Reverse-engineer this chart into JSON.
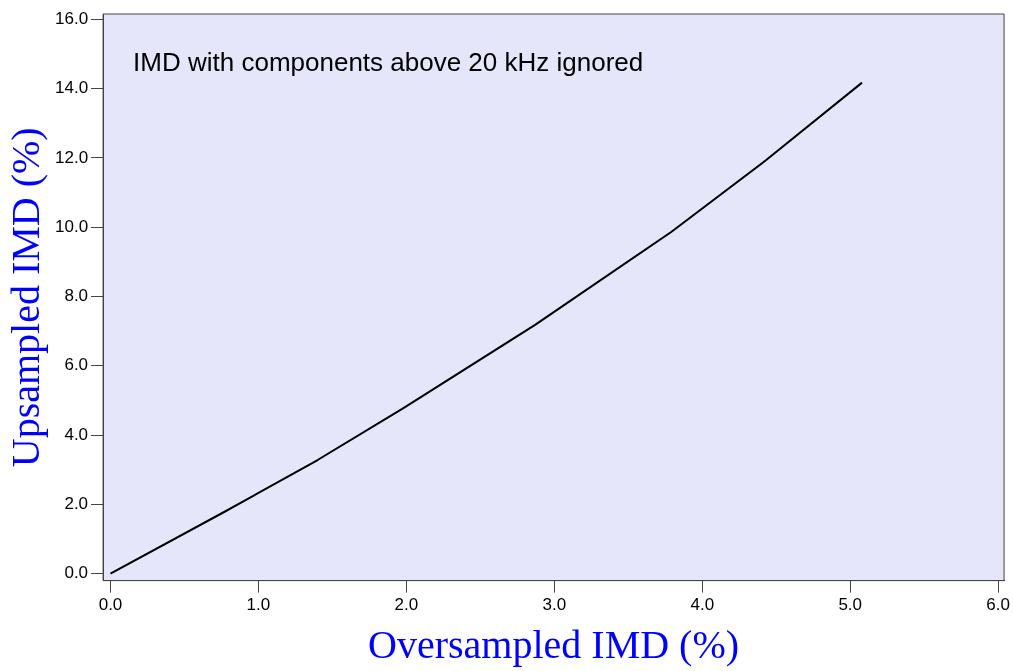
{
  "chart_data": {
    "type": "line",
    "xlabel": "Oversampled IMD (%)",
    "ylabel": "Upsampled IMD (%)",
    "annotations": [
      "IMD with components above 20 kHz ignored"
    ],
    "x": [
      0,
      0.79,
      1.4,
      1.98,
      2.87,
      3.79,
      4.43,
      5.08
    ],
    "series": [
      {
        "color": "#000000",
        "values": [
          0,
          1.83,
          3.28,
          4.78,
          7.18,
          9.86,
          11.93,
          14.17
        ]
      }
    ],
    "xlim": [
      -0.05,
      6.04
    ],
    "ylim": [
      -0.2,
      16.15
    ],
    "xticks": [
      {
        "value": 0,
        "label": "0.0"
      },
      {
        "value": 1,
        "label": "1.0"
      },
      {
        "value": 2,
        "label": "2.0"
      },
      {
        "value": 3,
        "label": "3.0"
      },
      {
        "value": 4,
        "label": "4.0"
      },
      {
        "value": 5,
        "label": "5.0"
      },
      {
        "value": 6,
        "label": "6.0"
      }
    ],
    "yticks": [
      {
        "value": 0,
        "label": "0.0"
      },
      {
        "value": 2,
        "label": "2.0"
      },
      {
        "value": 4,
        "label": "4.0"
      },
      {
        "value": 6,
        "label": "6.0"
      },
      {
        "value": 8,
        "label": "8.0"
      },
      {
        "value": 10,
        "label": "10.0"
      },
      {
        "value": 12,
        "label": "12.0"
      },
      {
        "value": 14,
        "label": "14.0"
      },
      {
        "value": 16,
        "label": "16.0"
      }
    ],
    "grid": false,
    "legend": false,
    "marker": "none",
    "line_style": "solid"
  }
}
